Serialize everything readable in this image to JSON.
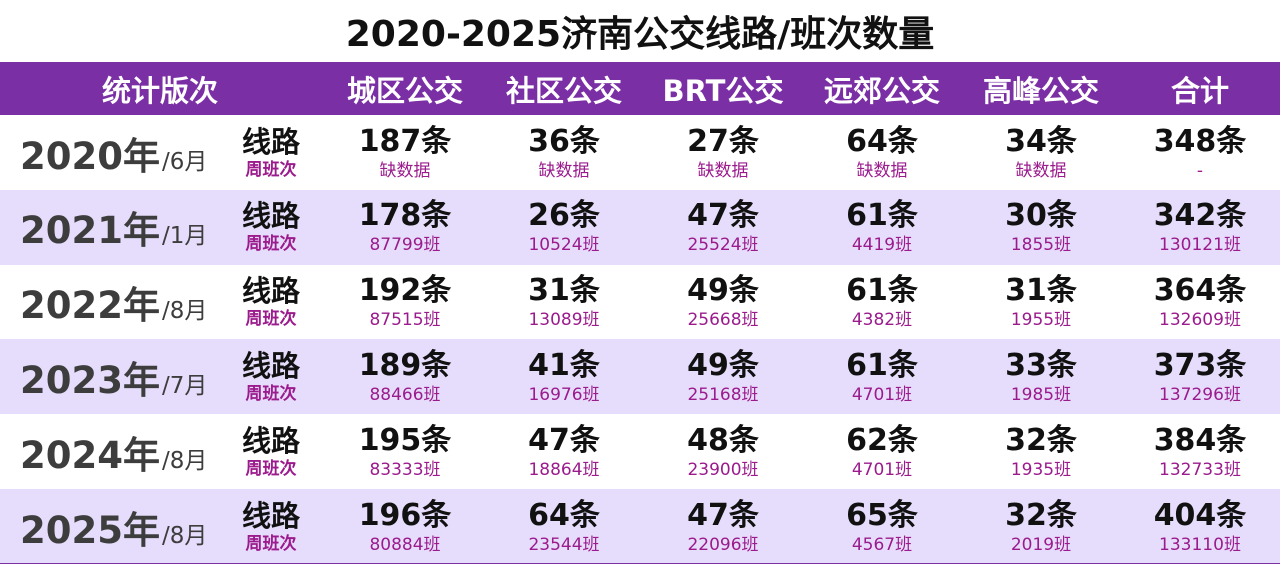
{
  "title": "2020-2025济南公交线路/班次数量",
  "colors": {
    "header_bg": "#7b2fa5",
    "stripe_bg": "#e6dcfb",
    "sub_text": "#9b1b8d"
  },
  "headers": [
    "统计版次",
    "城区公交",
    "社区公交",
    "BRT公交",
    "远郊公交",
    "高峰公交",
    "合计"
  ],
  "row_label_main": "线路",
  "row_label_sub": "周班次",
  "rows": [
    {
      "year": "2020年",
      "month": "/6月",
      "cells": [
        {
          "main": "187条",
          "sub": "缺数据"
        },
        {
          "main": "36条",
          "sub": "缺数据"
        },
        {
          "main": "27条",
          "sub": "缺数据"
        },
        {
          "main": "64条",
          "sub": "缺数据"
        },
        {
          "main": "34条",
          "sub": "缺数据"
        },
        {
          "main": "348条",
          "sub": "-"
        }
      ]
    },
    {
      "year": "2021年",
      "month": "/1月",
      "cells": [
        {
          "main": "178条",
          "sub": "87799班"
        },
        {
          "main": "26条",
          "sub": "10524班"
        },
        {
          "main": "47条",
          "sub": "25524班"
        },
        {
          "main": "61条",
          "sub": "4419班"
        },
        {
          "main": "30条",
          "sub": "1855班"
        },
        {
          "main": "342条",
          "sub": "130121班"
        }
      ]
    },
    {
      "year": "2022年",
      "month": "/8月",
      "cells": [
        {
          "main": "192条",
          "sub": "87515班"
        },
        {
          "main": "31条",
          "sub": "13089班"
        },
        {
          "main": "49条",
          "sub": "25668班"
        },
        {
          "main": "61条",
          "sub": "4382班"
        },
        {
          "main": "31条",
          "sub": "1955班"
        },
        {
          "main": "364条",
          "sub": "132609班"
        }
      ]
    },
    {
      "year": "2023年",
      "month": "/7月",
      "cells": [
        {
          "main": "189条",
          "sub": "88466班"
        },
        {
          "main": "41条",
          "sub": "16976班"
        },
        {
          "main": "49条",
          "sub": "25168班"
        },
        {
          "main": "61条",
          "sub": "4701班"
        },
        {
          "main": "33条",
          "sub": "1985班"
        },
        {
          "main": "373条",
          "sub": "137296班"
        }
      ]
    },
    {
      "year": "2024年",
      "month": "/8月",
      "cells": [
        {
          "main": "195条",
          "sub": "83333班"
        },
        {
          "main": "47条",
          "sub": "18864班"
        },
        {
          "main": "48条",
          "sub": "23900班"
        },
        {
          "main": "62条",
          "sub": "4701班"
        },
        {
          "main": "32条",
          "sub": "1935班"
        },
        {
          "main": "384条",
          "sub": "132733班"
        }
      ]
    },
    {
      "year": "2025年",
      "month": "/8月",
      "cells": [
        {
          "main": "196条",
          "sub": "80884班"
        },
        {
          "main": "64条",
          "sub": "23544班"
        },
        {
          "main": "47条",
          "sub": "22096班"
        },
        {
          "main": "65条",
          "sub": "4567班"
        },
        {
          "main": "32条",
          "sub": "2019班"
        },
        {
          "main": "404条",
          "sub": "133110班"
        }
      ]
    }
  ]
}
